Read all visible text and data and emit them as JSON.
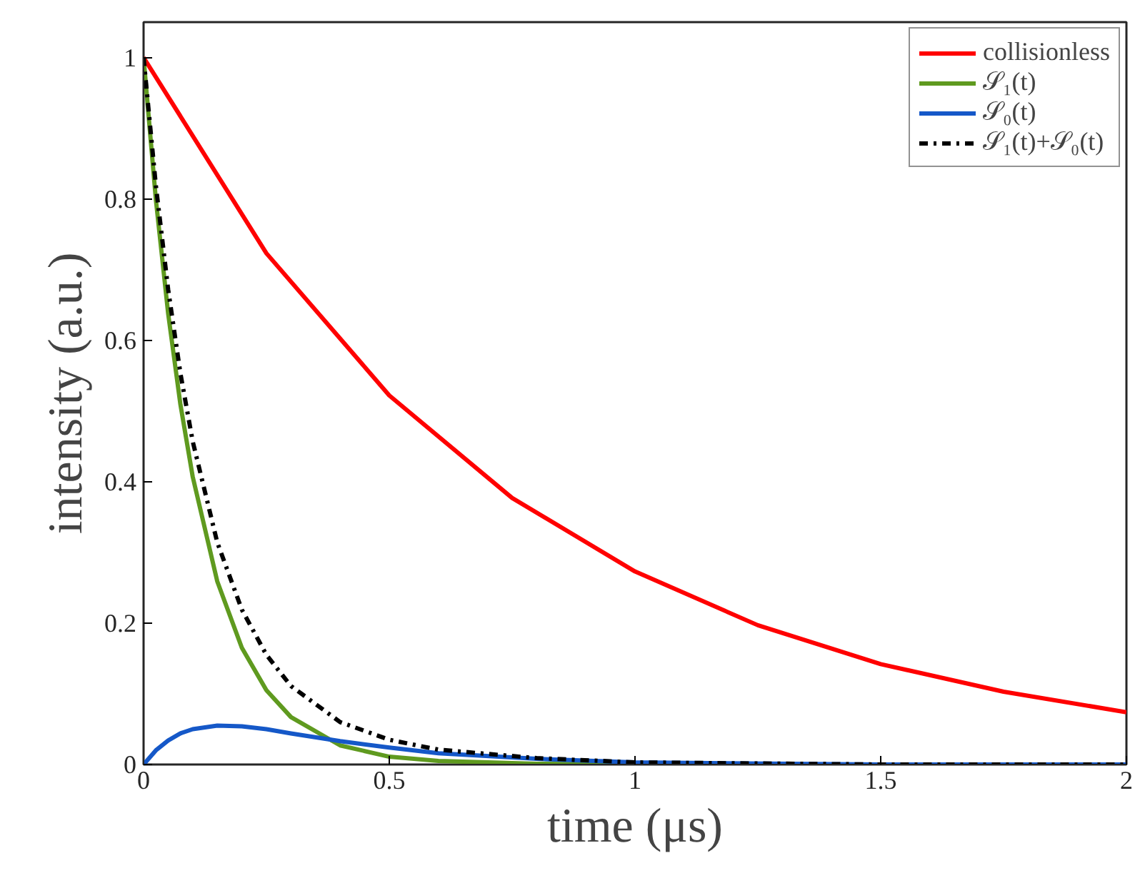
{
  "chart_data": {
    "type": "line",
    "xlabel": "time (μs)",
    "ylabel": "intensity (a.u.)",
    "xlim": [
      0,
      2
    ],
    "ylim": [
      0,
      1.05
    ],
    "xticks": [
      0,
      0.5,
      1,
      1.5,
      2
    ],
    "yticks": [
      0,
      0.2,
      0.4,
      0.6,
      0.8,
      1
    ],
    "grid": false,
    "legend": "top right",
    "marker": "none",
    "series": [
      {
        "name": "collisionless",
        "color": "#ff0000",
        "line_style": "solid",
        "x": [
          0,
          0.25,
          0.5,
          0.75,
          1,
          1.25,
          1.5,
          1.75,
          2
        ],
        "values": [
          1,
          0.723,
          0.522,
          0.377,
          0.273,
          0.197,
          0.142,
          0.103,
          0.074
        ]
      },
      {
        "name": "𝒮₁(t)",
        "color": "#5f9a1f",
        "line_style": "solid",
        "x": [
          0,
          0.025,
          0.05,
          0.075,
          0.1,
          0.15,
          0.2,
          0.25,
          0.3,
          0.4,
          0.5,
          0.6,
          0.8,
          1,
          1.5,
          2
        ],
        "values": [
          1,
          0.799,
          0.638,
          0.509,
          0.407,
          0.259,
          0.165,
          0.105,
          0.067,
          0.027,
          0.011,
          0.005,
          0.001,
          0,
          0,
          0
        ]
      },
      {
        "name": "𝒮₀(t)",
        "color": "#1558c8",
        "line_style": "solid",
        "x": [
          0,
          0.025,
          0.05,
          0.075,
          0.1,
          0.15,
          0.2,
          0.25,
          0.3,
          0.4,
          0.5,
          0.6,
          0.8,
          1,
          1.5,
          2
        ],
        "values": [
          0,
          0.02,
          0.034,
          0.044,
          0.05,
          0.055,
          0.054,
          0.05,
          0.044,
          0.033,
          0.024,
          0.016,
          0.008,
          0.003,
          0,
          0
        ]
      },
      {
        "name": "𝒮₁(t)+𝒮₀(t)",
        "color": "#000000",
        "line_style": "dashdot",
        "x": [
          0,
          0.025,
          0.05,
          0.075,
          0.1,
          0.15,
          0.2,
          0.25,
          0.3,
          0.4,
          0.5,
          0.6,
          0.8,
          1,
          1.5,
          2
        ],
        "values": [
          1,
          0.819,
          0.672,
          0.553,
          0.457,
          0.314,
          0.219,
          0.155,
          0.111,
          0.06,
          0.035,
          0.021,
          0.009,
          0.003,
          0,
          0
        ]
      }
    ]
  }
}
